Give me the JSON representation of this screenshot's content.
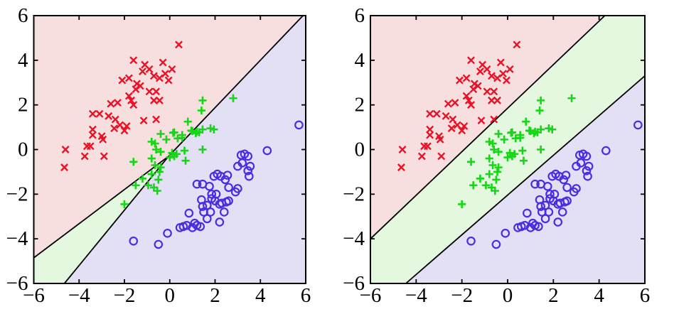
{
  "figure": {
    "background": "#ffffff",
    "panels": [
      {
        "name": "left-decision-boundary-plot"
      },
      {
        "name": "right-decision-boundary-plot"
      }
    ]
  },
  "chart_data": {
    "type": "scatter",
    "title": "",
    "xlabel": "",
    "ylabel": "",
    "xlim": [
      -6,
      6
    ],
    "ylim": [
      -6,
      6
    ],
    "xticks": [
      -6,
      -4,
      -2,
      0,
      2,
      4,
      6
    ],
    "yticks": [
      -6,
      -4,
      -2,
      0,
      2,
      4,
      6
    ],
    "grid": false,
    "legend": "none",
    "axis_color": "#000000",
    "boundary_color": "#000000",
    "series": [
      {
        "name": "class-1-red-cross",
        "marker": "x",
        "color": "#ea1226",
        "points": [
          [
            0.4,
            4.7
          ],
          [
            -1.6,
            4.0
          ],
          [
            -1.1,
            3.8
          ],
          [
            -0.3,
            3.9
          ],
          [
            -0.9,
            3.6
          ],
          [
            0.1,
            3.6
          ],
          [
            -1.2,
            3.5
          ],
          [
            -0.7,
            3.3
          ],
          [
            -0.45,
            3.2
          ],
          [
            -0.2,
            3.4
          ],
          [
            -0.05,
            3.1
          ],
          [
            -2.1,
            3.1
          ],
          [
            -1.8,
            3.2
          ],
          [
            -1.45,
            2.95
          ],
          [
            -1.3,
            2.85
          ],
          [
            -1.5,
            2.7
          ],
          [
            -0.9,
            2.6
          ],
          [
            -0.6,
            2.6
          ],
          [
            -1.8,
            2.4
          ],
          [
            -0.7,
            2.2
          ],
          [
            -0.45,
            2.2
          ],
          [
            -1.7,
            2.2
          ],
          [
            -2.6,
            2.05
          ],
          [
            -2.3,
            2.1
          ],
          [
            -1.6,
            2.0
          ],
          [
            -3.4,
            1.6
          ],
          [
            -3.1,
            1.6
          ],
          [
            -2.7,
            1.5
          ],
          [
            -2.4,
            1.35
          ],
          [
            -2.2,
            1.1
          ],
          [
            -1.9,
            1.05
          ],
          [
            -1.15,
            1.3
          ],
          [
            -0.6,
            1.35
          ],
          [
            -3.4,
            0.9
          ],
          [
            -3.4,
            0.65
          ],
          [
            -3.0,
            0.6
          ],
          [
            -2.45,
            0.95
          ],
          [
            -2.0,
            0.85
          ],
          [
            -4.6,
            0.0
          ],
          [
            -3.65,
            0.15
          ],
          [
            -3.5,
            0.15
          ],
          [
            -2.95,
            0.45
          ],
          [
            -3.75,
            -0.3
          ],
          [
            -2.9,
            -0.3
          ],
          [
            -4.65,
            -0.8
          ]
        ]
      },
      {
        "name": "class-2-green-plus",
        "marker": "+",
        "color": "#17d617",
        "points": [
          [
            2.8,
            2.3
          ],
          [
            1.45,
            2.2
          ],
          [
            1.4,
            1.75
          ],
          [
            0.8,
            1.25
          ],
          [
            1.45,
            0.9
          ],
          [
            1.8,
            0.95
          ],
          [
            1.95,
            0.9
          ],
          [
            0.95,
            0.85
          ],
          [
            1.2,
            0.8
          ],
          [
            1.0,
            0.83
          ],
          [
            1.15,
            0.73
          ],
          [
            1.3,
            0.77
          ],
          [
            0.55,
            0.65
          ],
          [
            0.15,
            0.75
          ],
          [
            -0.4,
            0.7
          ],
          [
            0.2,
            0.77
          ],
          [
            -0.65,
            0.27
          ],
          [
            -0.15,
            0.45
          ],
          [
            0.35,
            0.5
          ],
          [
            0.55,
            0.53
          ],
          [
            -0.8,
            0.35
          ],
          [
            -0.6,
            0.0
          ],
          [
            -0.4,
            -0.1
          ],
          [
            0.1,
            -0.15
          ],
          [
            0.2,
            -0.3
          ],
          [
            0.3,
            -0.2
          ],
          [
            0.0,
            -0.35
          ],
          [
            0.65,
            -0.05
          ],
          [
            0.7,
            -0.5
          ],
          [
            -1.6,
            -0.55
          ],
          [
            -0.8,
            -0.4
          ],
          [
            -0.65,
            -0.7
          ],
          [
            -0.4,
            -0.8
          ],
          [
            -1.2,
            -1.3
          ],
          [
            -0.8,
            -1.1
          ],
          [
            -0.45,
            -1.0
          ],
          [
            -0.5,
            -1.35
          ],
          [
            -1.5,
            -1.6
          ],
          [
            -0.95,
            -1.6
          ],
          [
            -0.7,
            -1.7
          ],
          [
            -0.55,
            -1.85
          ],
          [
            -2.0,
            -2.45
          ],
          [
            1.45,
            0.0
          ]
        ]
      },
      {
        "name": "class-3-blue-circle",
        "marker": "o",
        "color": "#4b2ce0",
        "points": [
          [
            5.7,
            1.1
          ],
          [
            4.3,
            -0.05
          ],
          [
            3.3,
            -0.2
          ],
          [
            3.45,
            -0.3
          ],
          [
            3.15,
            -0.25
          ],
          [
            3.55,
            -0.75
          ],
          [
            3.2,
            -0.6
          ],
          [
            3.0,
            -0.75
          ],
          [
            3.45,
            -0.95
          ],
          [
            3.5,
            -1.2
          ],
          [
            2.1,
            -1.1
          ],
          [
            1.95,
            -1.2
          ],
          [
            2.25,
            -1.2
          ],
          [
            2.55,
            -1.15
          ],
          [
            2.6,
            -1.7
          ],
          [
            2.9,
            -1.9
          ],
          [
            3.0,
            -1.75
          ],
          [
            1.2,
            -1.55
          ],
          [
            1.45,
            -1.55
          ],
          [
            1.75,
            -1.65
          ],
          [
            1.85,
            -2.0
          ],
          [
            2.05,
            -2.0
          ],
          [
            2.0,
            -2.3
          ],
          [
            1.85,
            -2.2
          ],
          [
            2.3,
            -2.4
          ],
          [
            2.5,
            -2.35
          ],
          [
            2.6,
            -2.3
          ],
          [
            2.2,
            -2.45
          ],
          [
            1.65,
            -2.5
          ],
          [
            1.45,
            -2.55
          ],
          [
            1.4,
            -2.25
          ],
          [
            1.5,
            -2.8
          ],
          [
            1.8,
            -2.8
          ],
          [
            1.65,
            -3.1
          ],
          [
            2.2,
            -3.25
          ],
          [
            0.85,
            -2.85
          ],
          [
            0.6,
            -3.45
          ],
          [
            0.75,
            -3.4
          ],
          [
            1.0,
            -3.5
          ],
          [
            1.2,
            -3.4
          ],
          [
            1.35,
            -3.45
          ],
          [
            0.45,
            -3.5
          ],
          [
            -0.1,
            -3.75
          ],
          [
            -0.5,
            -4.25
          ],
          [
            -1.6,
            -4.1
          ],
          [
            2.4,
            -2.8
          ],
          [
            1.1,
            -3.3
          ],
          [
            2.45,
            -1.35
          ]
        ]
      }
    ],
    "subplots": [
      {
        "name": "left",
        "description": "three-class linear decision regions meeting at a vertex",
        "regions": [
          {
            "class": "class-1-red",
            "fill": "#f8dfdf",
            "polygon": [
              [
                -6,
                6
              ],
              [
                -6,
                -4.85
              ],
              [
                -0.05,
                -0.3
              ],
              [
                5.88,
                6
              ]
            ]
          },
          {
            "class": "class-2-green",
            "fill": "#e4f8df",
            "polygon": [
              [
                -6,
                -4.85
              ],
              [
                -0.05,
                -0.3
              ],
              [
                -4.65,
                -6
              ],
              [
                -6,
                -6
              ]
            ]
          },
          {
            "class": "class-3-blue",
            "fill": "#e3e0f6",
            "polygon": [
              [
                -4.65,
                -6
              ],
              [
                -0.05,
                -0.3
              ],
              [
                5.88,
                6
              ],
              [
                6,
                6
              ],
              [
                6,
                -6
              ]
            ]
          }
        ],
        "boundaries": [
          [
            [
              -6,
              -4.85
            ],
            [
              -0.05,
              -0.3
            ]
          ],
          [
            [
              -4.65,
              -6
            ],
            [
              -0.05,
              -0.3
            ]
          ],
          [
            [
              -0.05,
              -0.3
            ],
            [
              5.88,
              6
            ]
          ]
        ]
      },
      {
        "name": "right",
        "description": "three-class decision regions as parallel bands",
        "regions": [
          {
            "class": "class-1-red",
            "fill": "#f8dfdf",
            "polygon": [
              [
                -6,
                6
              ],
              [
                -6,
                -4.0
              ],
              [
                4.25,
                6
              ]
            ]
          },
          {
            "class": "class-2-green",
            "fill": "#e4f8df",
            "polygon": [
              [
                -6,
                -4.0
              ],
              [
                4.25,
                6
              ],
              [
                6,
                6
              ],
              [
                6,
                3.3
              ],
              [
                -4.45,
                -6
              ],
              [
                -6,
                -6
              ]
            ]
          },
          {
            "class": "class-3-blue",
            "fill": "#e3e0f6",
            "polygon": [
              [
                -4.45,
                -6
              ],
              [
                6,
                3.3
              ],
              [
                6,
                -6
              ]
            ]
          }
        ],
        "boundaries": [
          [
            [
              -6,
              -4.0
            ],
            [
              4.25,
              6
            ]
          ],
          [
            [
              -4.45,
              -6
            ],
            [
              6,
              3.3
            ]
          ]
        ]
      }
    ]
  }
}
